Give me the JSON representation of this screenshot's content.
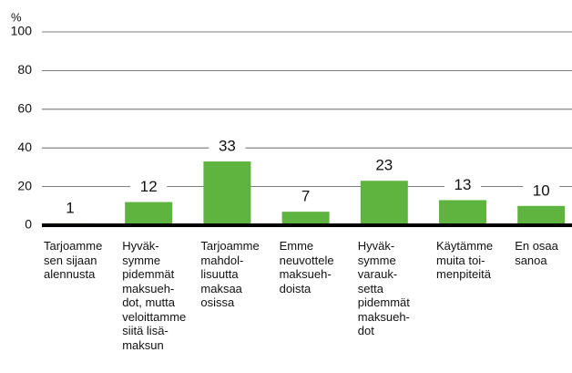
{
  "chart_data": {
    "type": "bar",
    "ylabel": "%",
    "categories": [
      "Tarjoamme\nsen sijaan\nalennusta",
      "Hyväk-\nsymme\npidemmät\nmaksueh-\ndot, mutta\nveloittamme\nsiitä lisä-\nmaksun",
      "Tarjoamme\nmahdol-\nlisuutta\nmaksaa\nosissa",
      "Emme\nneuvottele\nmaksueh-\ndoista",
      "Hyväk-\nsymme\nvarauk-\nsetta\npidemmät\nmaksueh-\ndot",
      "Käytämme\nmuita toi-\nmenpiteitä",
      "En osaa\nsanoa"
    ],
    "values": [
      1,
      12,
      33,
      7,
      23,
      13,
      10
    ],
    "color": "#5eb43f",
    "ylim": [
      0,
      100
    ],
    "yticks": [
      0,
      20,
      40,
      60,
      80,
      100
    ],
    "grid": true
  }
}
